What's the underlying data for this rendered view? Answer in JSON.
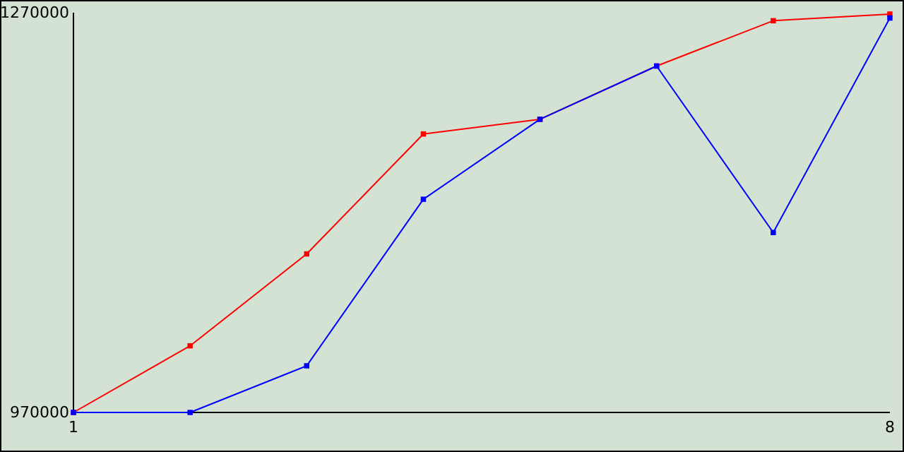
{
  "chart_data": {
    "type": "line",
    "x": [
      1,
      2,
      3,
      4,
      5,
      6,
      7,
      8
    ],
    "series": [
      {
        "color": "#ff0000",
        "values": [
          970000,
          1020000,
          1089000,
          1179000,
          1190000,
          1230000,
          1264000,
          1269000
        ]
      },
      {
        "color": "#0000ff",
        "values": [
          970000,
          970000,
          1005000,
          1130000,
          1190000,
          1230000,
          1105000,
          1266000
        ]
      }
    ],
    "xlim": [
      1,
      8
    ],
    "xticks": [
      1,
      8
    ],
    "ylim": [
      970000,
      1270000
    ],
    "yticks": [
      970000,
      1270000
    ],
    "grid": false,
    "marker": "square",
    "line_style": "solid"
  }
}
